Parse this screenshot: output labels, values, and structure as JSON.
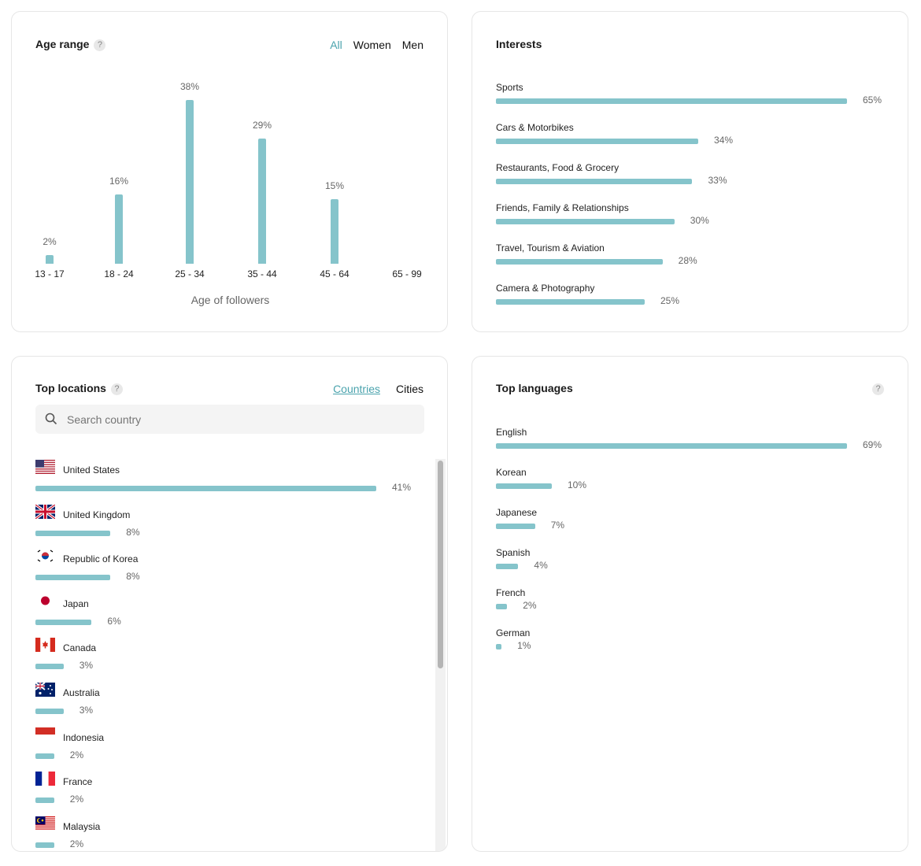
{
  "age_range": {
    "title": "Age range",
    "help": "?",
    "tabs": [
      "All",
      "Women",
      "Men"
    ],
    "active_tab": "All",
    "xlabel": "Age of followers",
    "chart_data": {
      "type": "bar",
      "categories": [
        "13 - 17",
        "18 - 24",
        "25 - 34",
        "35 - 44",
        "45 - 64",
        "65 - 99"
      ],
      "values": [
        2,
        16,
        38,
        29,
        15,
        0
      ],
      "labels": [
        "2%",
        "16%",
        "38%",
        "29%",
        "15%",
        ""
      ],
      "xlabel": "Age of followers",
      "ylim": [
        0,
        38
      ]
    }
  },
  "interests": {
    "title": "Interests",
    "items": [
      {
        "label": "Sports",
        "value": 65,
        "pct": "65%"
      },
      {
        "label": "Cars & Motorbikes",
        "value": 34,
        "pct": "34%"
      },
      {
        "label": "Restaurants, Food & Grocery",
        "value": 33,
        "pct": "33%"
      },
      {
        "label": "Friends, Family & Relationships",
        "value": 30,
        "pct": "30%"
      },
      {
        "label": "Travel, Tourism & Aviation",
        "value": 28,
        "pct": "28%"
      },
      {
        "label": "Camera & Photography",
        "value": 25,
        "pct": "25%"
      }
    ]
  },
  "locations": {
    "title": "Top locations",
    "help": "?",
    "tabs": [
      "Countries",
      "Cities"
    ],
    "active_tab": "Countries",
    "search_placeholder": "Search country",
    "items": [
      {
        "label": "United States",
        "flag": "us",
        "value": 41,
        "pct": "41%"
      },
      {
        "label": "United Kingdom",
        "flag": "gb",
        "value": 8,
        "pct": "8%"
      },
      {
        "label": "Republic of Korea",
        "flag": "kr",
        "value": 8,
        "pct": "8%"
      },
      {
        "label": "Japan",
        "flag": "jp",
        "value": 6,
        "pct": "6%"
      },
      {
        "label": "Canada",
        "flag": "ca",
        "value": 3,
        "pct": "3%"
      },
      {
        "label": "Australia",
        "flag": "au",
        "value": 3,
        "pct": "3%"
      },
      {
        "label": "Indonesia",
        "flag": "id",
        "value": 2,
        "pct": "2%"
      },
      {
        "label": "France",
        "flag": "fr",
        "value": 2,
        "pct": "2%"
      },
      {
        "label": "Malaysia",
        "flag": "my",
        "value": 2,
        "pct": "2%"
      }
    ]
  },
  "languages": {
    "title": "Top languages",
    "help": "?",
    "items": [
      {
        "label": "English",
        "value": 69,
        "pct": "69%"
      },
      {
        "label": "Korean",
        "value": 10,
        "pct": "10%"
      },
      {
        "label": "Japanese",
        "value": 7,
        "pct": "7%"
      },
      {
        "label": "Spanish",
        "value": 4,
        "pct": "4%"
      },
      {
        "label": "French",
        "value": 2,
        "pct": "2%"
      },
      {
        "label": "German",
        "value": 1,
        "pct": "1%"
      }
    ]
  },
  "colors": {
    "accent": "#4aa3ad",
    "bar": "#85c4cb"
  }
}
